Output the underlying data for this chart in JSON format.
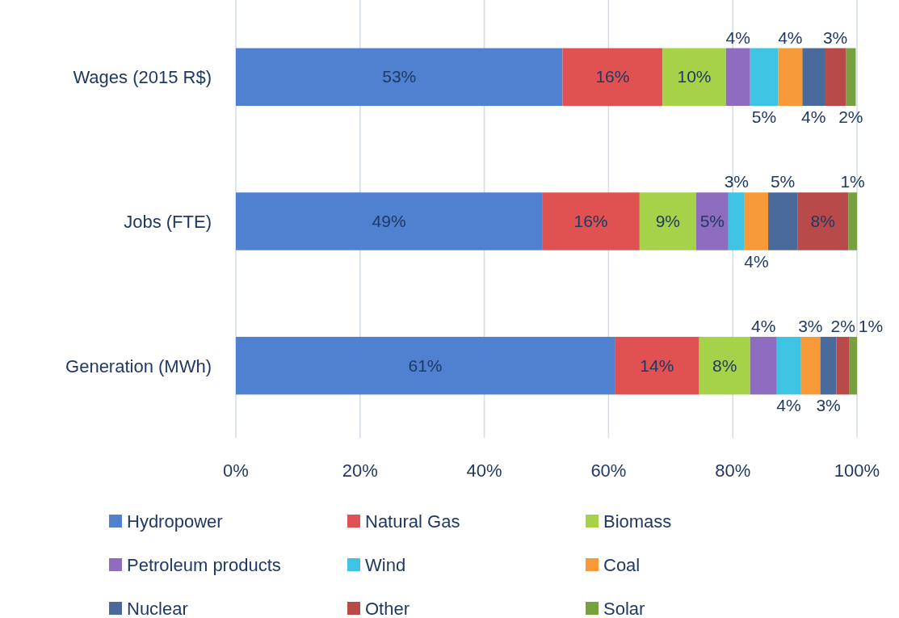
{
  "chart_data": {
    "type": "bar",
    "orientation": "horizontal",
    "stacked": true,
    "categories": [
      "Wages (2015 R$)",
      "Jobs (FTE)",
      "Generation (MWh)"
    ],
    "series": [
      {
        "name": "Hydropower",
        "color": "#4f81d0",
        "values": [
          52.6,
          49.3,
          61.0
        ],
        "value_labels": [
          "53%",
          "49%",
          "61%"
        ]
      },
      {
        "name": "Natural Gas",
        "color": "#e05252",
        "values": [
          16.1,
          15.7,
          13.6
        ],
        "value_labels": [
          "16%",
          "16%",
          "14%"
        ]
      },
      {
        "name": "Biomass",
        "color": "#a6d24a",
        "values": [
          10.2,
          9.1,
          8.2
        ],
        "value_labels": [
          "10%",
          "9%",
          "8%"
        ]
      },
      {
        "name": "Petroleum products",
        "color": "#8e6cbf",
        "values": [
          3.9,
          5.2,
          4.3
        ],
        "value_labels": [
          "4%",
          "5%",
          "4%"
        ]
      },
      {
        "name": "Wind",
        "color": "#3fc3e3",
        "values": [
          4.5,
          2.6,
          3.8
        ],
        "value_labels": [
          "5%",
          "3%",
          "4%"
        ]
      },
      {
        "name": "Coal",
        "color": "#f79a3a",
        "values": [
          3.9,
          3.8,
          3.2
        ],
        "value_labels": [
          "4%",
          "4%",
          "3%"
        ]
      },
      {
        "name": "Nuclear",
        "color": "#4a6a9c",
        "values": [
          3.6,
          4.7,
          2.6
        ],
        "value_labels": [
          "4%",
          "5%",
          "3%"
        ]
      },
      {
        "name": "Other",
        "color": "#b84a4a",
        "values": [
          3.4,
          8.2,
          2.1
        ],
        "value_labels": [
          "3%",
          "8%",
          "2%"
        ]
      },
      {
        "name": "Solar",
        "color": "#77a040",
        "values": [
          1.6,
          1.4,
          1.2
        ],
        "value_labels": [
          "2%",
          "1%",
          "1%"
        ]
      }
    ],
    "xlim": [
      0,
      100
    ],
    "xticks": [
      {
        "value": 0,
        "label": "0%"
      },
      {
        "value": 20,
        "label": "20%"
      },
      {
        "value": 40,
        "label": "40%"
      },
      {
        "value": 60,
        "label": "60%"
      },
      {
        "value": 80,
        "label": "80%"
      },
      {
        "value": 100,
        "label": "100%"
      }
    ],
    "grid": "x",
    "legend": "bottom"
  }
}
